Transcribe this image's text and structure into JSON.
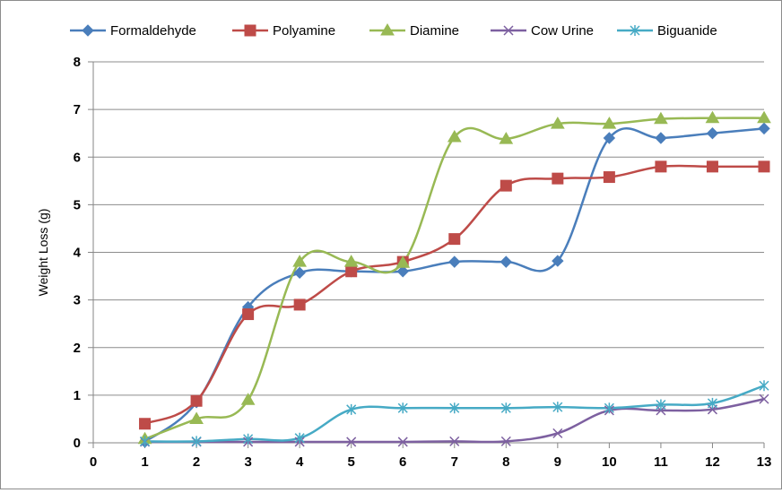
{
  "chart_data": {
    "type": "line",
    "title": "",
    "xlabel": "",
    "ylabel": "Weight Loss (g)",
    "xlim": [
      0,
      13
    ],
    "ylim": [
      0,
      8
    ],
    "xticks": [
      0,
      1,
      2,
      3,
      4,
      5,
      6,
      7,
      8,
      9,
      10,
      11,
      12,
      13
    ],
    "yticks": [
      0,
      1,
      2,
      3,
      4,
      5,
      6,
      7,
      8
    ],
    "grid": "horizontal",
    "legend_position": "top",
    "x": [
      1,
      2,
      3,
      4,
      5,
      6,
      7,
      8,
      9,
      10,
      11,
      12,
      13
    ],
    "series": [
      {
        "name": "Formaldehyde",
        "color": "#4a7ebb",
        "marker": "diamond",
        "values": [
          0.02,
          0.85,
          2.85,
          3.57,
          3.6,
          3.6,
          3.8,
          3.8,
          3.82,
          6.4,
          6.4,
          6.5,
          6.6
        ]
      },
      {
        "name": "Polyamine",
        "color": "#be4b48",
        "marker": "square",
        "values": [
          0.4,
          0.88,
          2.7,
          2.9,
          3.6,
          3.8,
          4.28,
          5.4,
          5.55,
          5.58,
          5.8,
          5.8,
          5.8
        ]
      },
      {
        "name": "Diamine",
        "color": "#98b954",
        "marker": "triangle",
        "values": [
          0.08,
          0.5,
          0.9,
          3.8,
          3.8,
          3.78,
          6.42,
          6.38,
          6.7,
          6.7,
          6.8,
          6.82,
          6.82
        ]
      },
      {
        "name": "Cow Urine",
        "color": "#7d60a0",
        "marker": "x",
        "values": [
          0.02,
          0.02,
          0.02,
          0.02,
          0.02,
          0.02,
          0.03,
          0.03,
          0.2,
          0.68,
          0.68,
          0.7,
          0.92
        ]
      },
      {
        "name": "Biguanide",
        "color": "#46aac5",
        "marker": "asterisk",
        "values": [
          0.03,
          0.03,
          0.08,
          0.1,
          0.7,
          0.73,
          0.73,
          0.73,
          0.75,
          0.73,
          0.8,
          0.83,
          1.2
        ]
      }
    ]
  }
}
